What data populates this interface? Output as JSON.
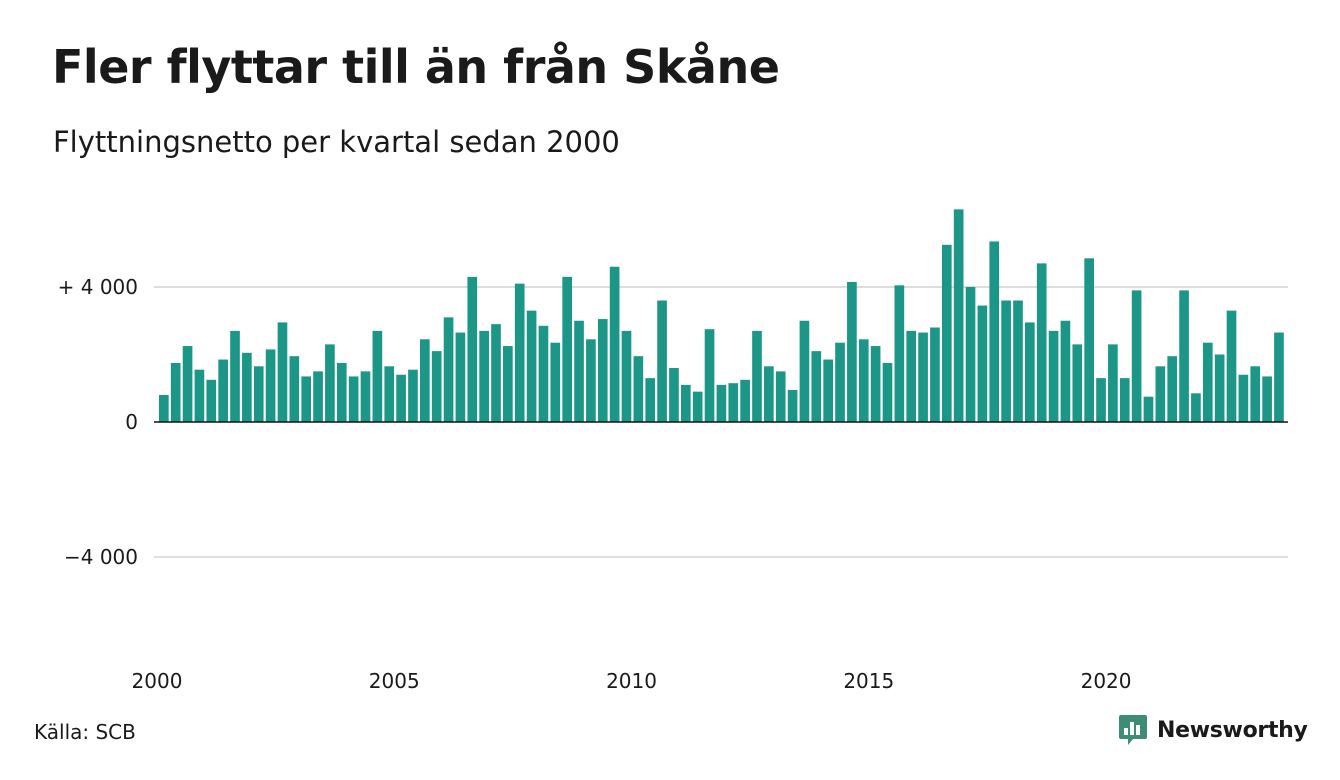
{
  "title": "Fler flyttar till än från Skåne",
  "subtitle": "Flyttningsnetto per kvartal sedan 2000",
  "source": "Källa: SCB",
  "brand": {
    "name": "Newsworthy",
    "icon": "newsworthy-logo-icon"
  },
  "colors": {
    "bar": "#1b9687",
    "brand": "#3d8c78",
    "grid": "#dddddd",
    "axis": "#111111"
  },
  "chart_data": {
    "type": "bar",
    "title": "Fler flyttar till än från Skåne",
    "subtitle": "Flyttningsnetto per kvartal sedan 2000",
    "xlabel": "",
    "ylabel": "",
    "ylim": [
      -6500,
      6500
    ],
    "xlim": [
      2000,
      2023.75
    ],
    "grid": true,
    "y_ticks": [
      {
        "value": 4000,
        "label": "+ 4 000"
      },
      {
        "value": 0,
        "label": "0"
      },
      {
        "value": -4000,
        "label": "−4 000"
      }
    ],
    "x_ticks": [
      {
        "value": 2000,
        "label": "2000"
      },
      {
        "value": 2005,
        "label": "2005"
      },
      {
        "value": 2010,
        "label": "2010"
      },
      {
        "value": 2015,
        "label": "2015"
      },
      {
        "value": 2020,
        "label": "2020"
      }
    ],
    "series": [
      {
        "values": [
          800,
          1750,
          2250,
          1550,
          1250,
          1850,
          2700,
          2050,
          1650,
          2150,
          2950,
          1950,
          1350,
          1500,
          2300,
          1750,
          1350,
          1500,
          2700,
          1650,
          1400,
          1550,
          2450,
          2100,
          3100,
          2650,
          4300,
          2700,
          2900,
          2250,
          4100,
          3300,
          2850,
          2350,
          4300,
          3000,
          2450,
          3050,
          4600,
          2700,
          1950,
          1300,
          3600,
          1600,
          1100,
          900,
          2750,
          1100,
          1150,
          1250,
          2700,
          1650,
          1500,
          950,
          3000,
          2100,
          1850,
          2350,
          4150,
          2450,
          2250,
          1750,
          4050,
          2700,
          2650,
          2800,
          5250,
          6300,
          4000,
          3450,
          5350,
          3600,
          3600,
          2950,
          4700,
          2700,
          3000,
          2300,
          4850,
          1300,
          2300,
          1300,
          3900,
          750,
          1650,
          1950,
          3900,
          850,
          2350,
          2000,
          3300,
          1400,
          1650,
          1350,
          2650
        ]
      }
    ]
  }
}
